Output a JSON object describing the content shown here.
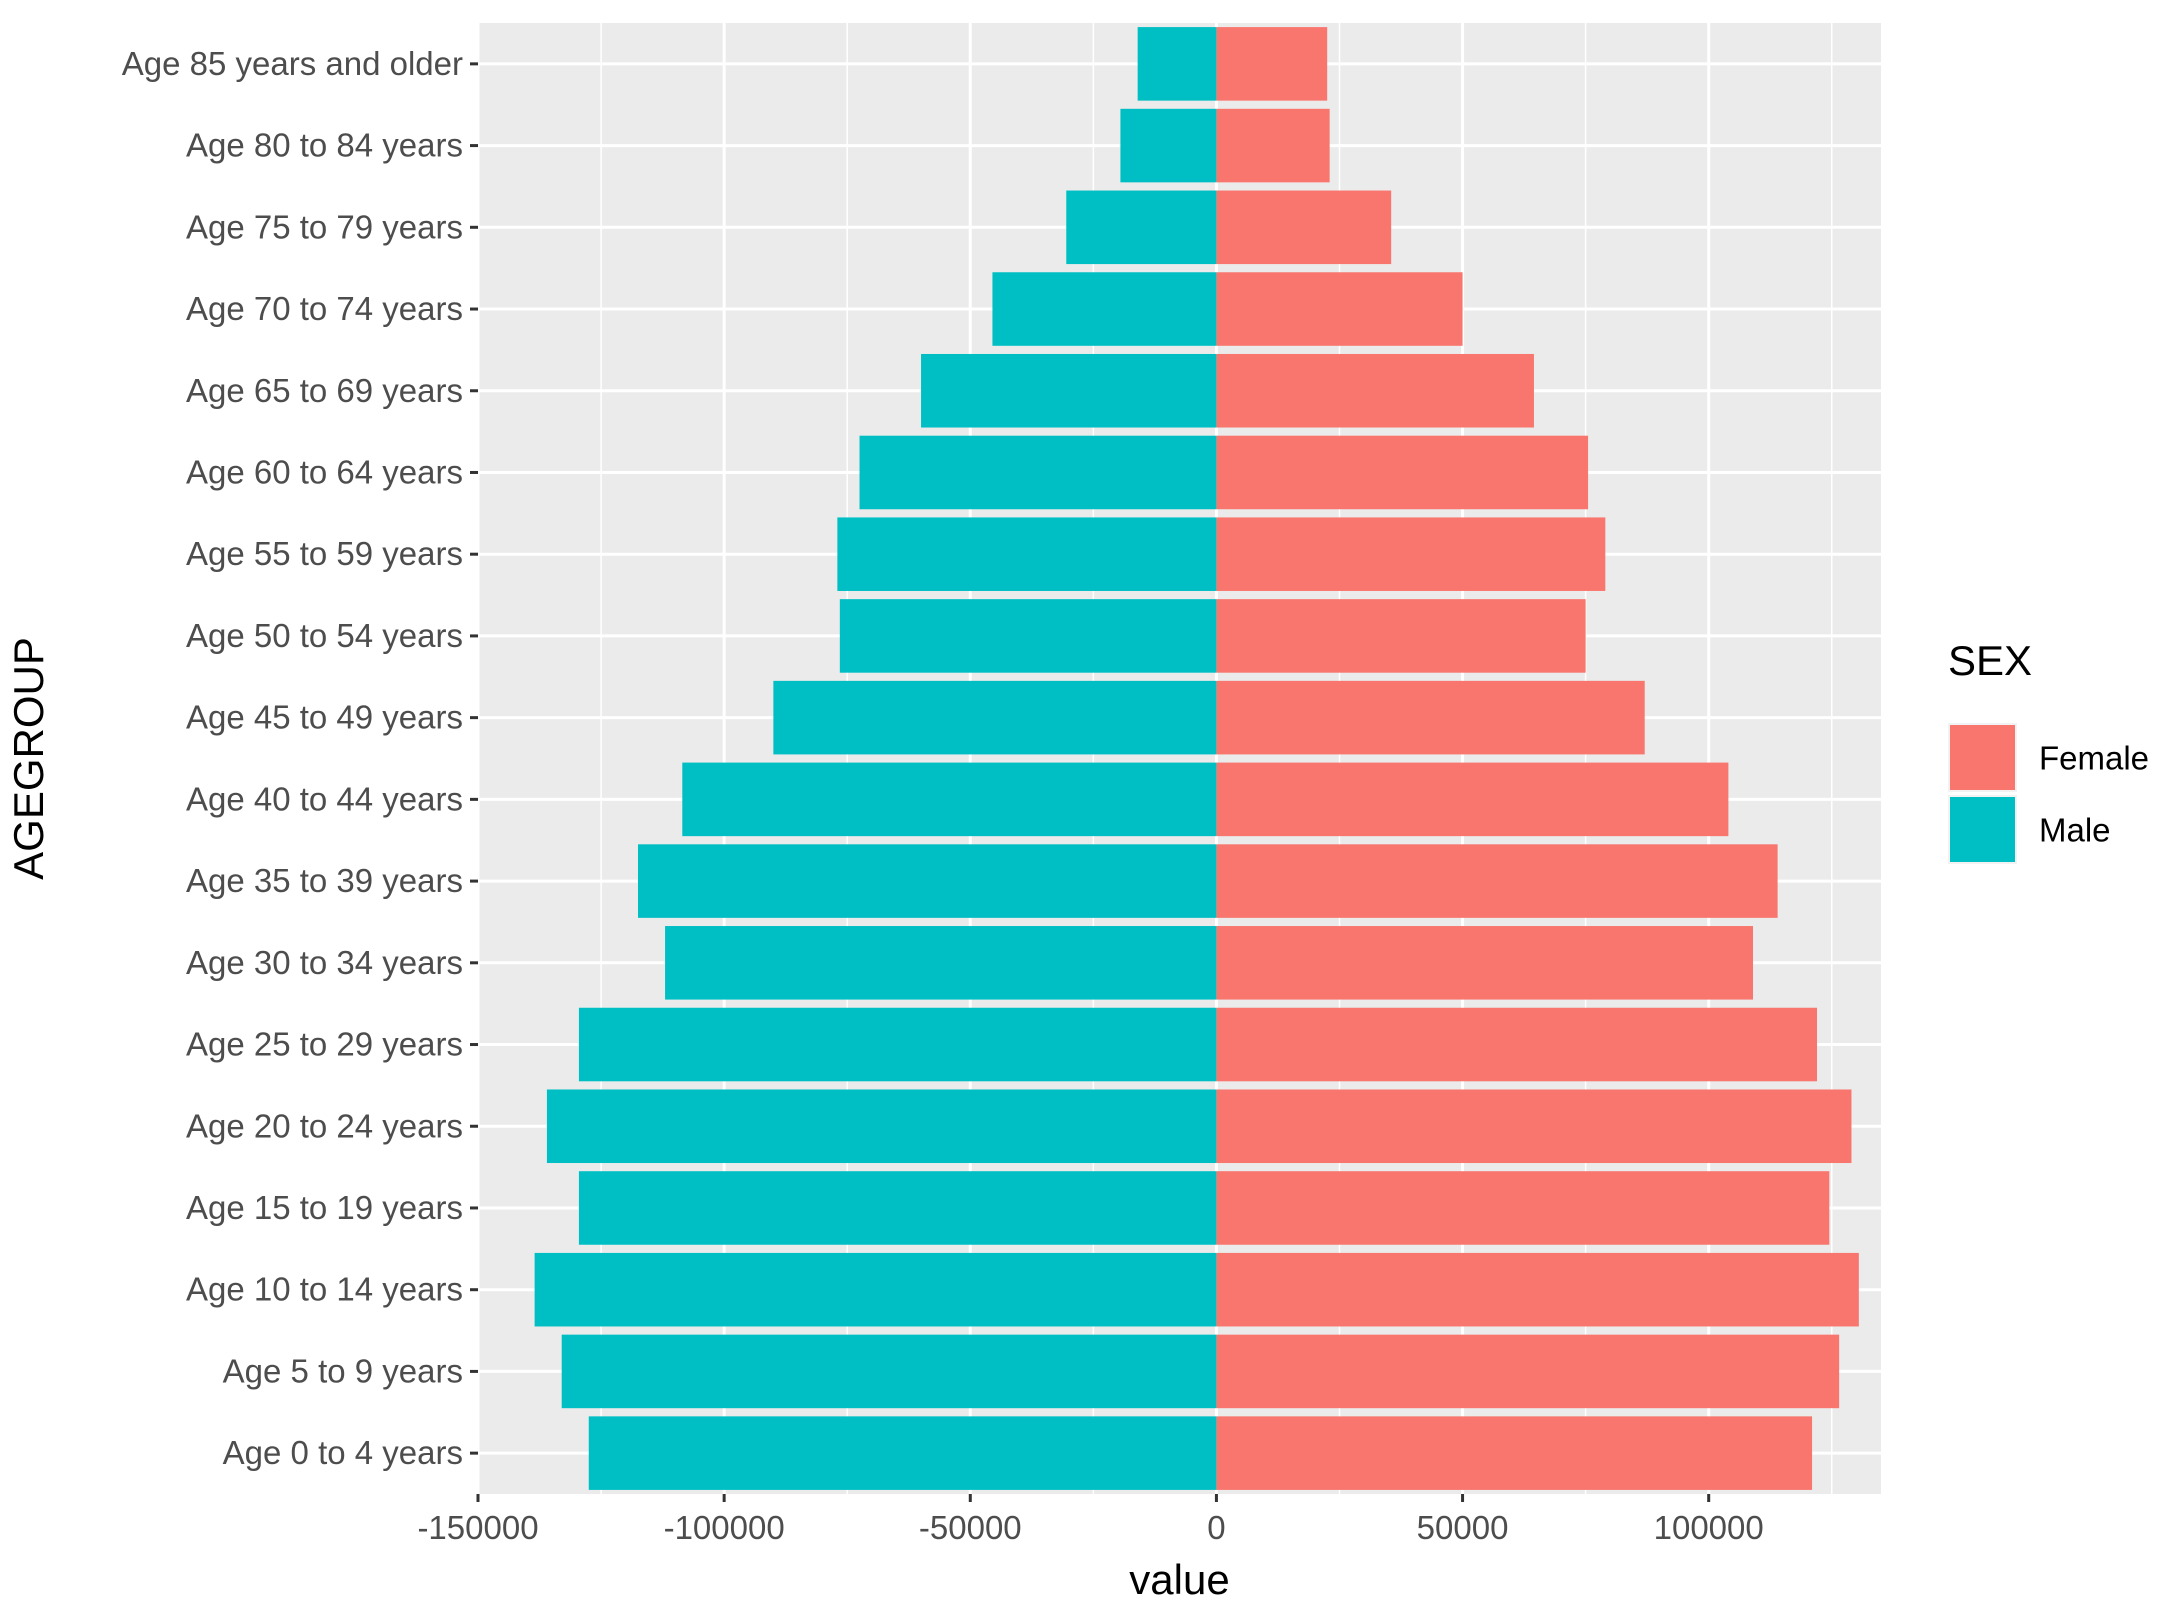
{
  "chart_data": {
    "type": "bar",
    "orientation": "horizontal",
    "stacking": "diverging",
    "xlabel": "value",
    "ylabel": "AGEGROUP",
    "xlim": [
      -150000,
      135000
    ],
    "xticks": [
      -150000,
      -100000,
      -50000,
      0,
      50000,
      100000
    ],
    "xtick_labels": [
      "-150000",
      "-100000",
      "-50000",
      "0",
      "50000",
      "100000"
    ],
    "grid": true,
    "legend_position": "right",
    "legend_title": "SEX",
    "categories": [
      "Age 85 years and older",
      "Age 80 to 84 years",
      "Age 75 to 79 years",
      "Age 70 to 74 years",
      "Age 65 to 69 years",
      "Age 60 to 64 years",
      "Age 55 to 59 years",
      "Age 50 to 54 years",
      "Age 45 to 49 years",
      "Age 40 to 44 years",
      "Age 35 to 39 years",
      "Age 30 to 34 years",
      "Age 25 to 29 years",
      "Age 20 to 24 years",
      "Age 15 to 19 years",
      "Age 10 to 14 years",
      "Age 5 to 9 years",
      "Age 0 to 4 years"
    ],
    "series": [
      {
        "name": "Female",
        "color": "#F8766D",
        "values": [
          22500,
          23000,
          35500,
          50000,
          64500,
          75500,
          79000,
          75000,
          87000,
          104000,
          114000,
          109000,
          122000,
          129000,
          124500,
          130500,
          126500,
          121000
        ]
      },
      {
        "name": "Male",
        "color": "#00BFC4",
        "values": [
          -16000,
          -19500,
          -30500,
          -45500,
          -60000,
          -72500,
          -77000,
          -76500,
          -90000,
          -108500,
          -117500,
          -112000,
          -129500,
          -136000,
          -129500,
          -138500,
          -133000,
          -127500
        ]
      }
    ]
  }
}
